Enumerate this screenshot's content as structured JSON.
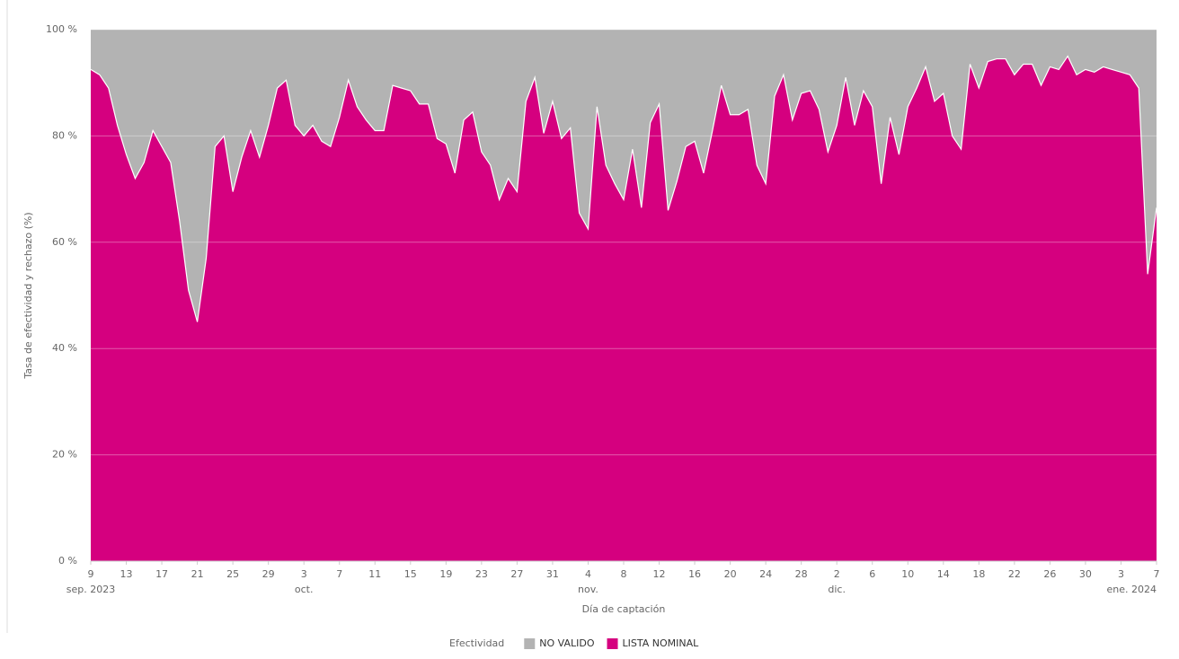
{
  "chart_data": {
    "type": "stacked_area",
    "y_label": "Tasa de efectividad y rechazo (%)",
    "x_label": "Día de captación",
    "legend_title": "Efectividad",
    "x": [
      "2023-09-09",
      "2023-09-10",
      "2023-09-11",
      "2023-09-12",
      "2023-09-13",
      "2023-09-14",
      "2023-09-15",
      "2023-09-16",
      "2023-09-17",
      "2023-09-18",
      "2023-09-19",
      "2023-09-20",
      "2023-09-21",
      "2023-09-22",
      "2023-09-23",
      "2023-09-24",
      "2023-09-25",
      "2023-09-26",
      "2023-09-27",
      "2023-09-28",
      "2023-09-29",
      "2023-09-30",
      "2023-10-01",
      "2023-10-02",
      "2023-10-03",
      "2023-10-04",
      "2023-10-05",
      "2023-10-06",
      "2023-10-07",
      "2023-10-08",
      "2023-10-09",
      "2023-10-10",
      "2023-10-11",
      "2023-10-12",
      "2023-10-13",
      "2023-10-14",
      "2023-10-15",
      "2023-10-16",
      "2023-10-17",
      "2023-10-18",
      "2023-10-19",
      "2023-10-20",
      "2023-10-21",
      "2023-10-22",
      "2023-10-23",
      "2023-10-24",
      "2023-10-25",
      "2023-10-26",
      "2023-10-27",
      "2023-10-28",
      "2023-10-29",
      "2023-10-30",
      "2023-10-31",
      "2023-11-01",
      "2023-11-02",
      "2023-11-03",
      "2023-11-04",
      "2023-11-05",
      "2023-11-06",
      "2023-11-07",
      "2023-11-08",
      "2023-11-09",
      "2023-11-10",
      "2023-11-11",
      "2023-11-12",
      "2023-11-13",
      "2023-11-14",
      "2023-11-15",
      "2023-11-16",
      "2023-11-17",
      "2023-11-18",
      "2023-11-19",
      "2023-11-20",
      "2023-11-21",
      "2023-11-22",
      "2023-11-23",
      "2023-11-24",
      "2023-11-25",
      "2023-11-26",
      "2023-11-27",
      "2023-11-28",
      "2023-11-29",
      "2023-11-30",
      "2023-12-01",
      "2023-12-02",
      "2023-12-03",
      "2023-12-04",
      "2023-12-05",
      "2023-12-06",
      "2023-12-07",
      "2023-12-08",
      "2023-12-09",
      "2023-12-10",
      "2023-12-11",
      "2023-12-12",
      "2023-12-13",
      "2023-12-14",
      "2023-12-15",
      "2023-12-16",
      "2023-12-17",
      "2023-12-18",
      "2023-12-19",
      "2023-12-20",
      "2023-12-21",
      "2023-12-22",
      "2023-12-23",
      "2023-12-24",
      "2023-12-25",
      "2023-12-26",
      "2023-12-27",
      "2023-12-28",
      "2023-12-29",
      "2023-12-30",
      "2023-12-31",
      "2024-01-01",
      "2024-01-02",
      "2024-01-03",
      "2024-01-04",
      "2024-01-05",
      "2024-01-06",
      "2024-01-07"
    ],
    "series": [
      {
        "name": "LISTA NOMINAL",
        "color": "#d5007f",
        "values": [
          92.5,
          91.5,
          89,
          82,
          76.5,
          72,
          75,
          81,
          78,
          75,
          64,
          51,
          45,
          57,
          78,
          80,
          69.5,
          76,
          81,
          76,
          82,
          89,
          90.5,
          82,
          80,
          82,
          79,
          78,
          83.5,
          90.5,
          85.5,
          83,
          81,
          81,
          89.5,
          89,
          88.5,
          86,
          86,
          79.5,
          78.5,
          73,
          83,
          84.5,
          77,
          74.5,
          68,
          72,
          69.5,
          86.5,
          91,
          80.5,
          86.5,
          79.5,
          81.5,
          65.5,
          62.5,
          85.5,
          74.5,
          71,
          68,
          77.5,
          66.5,
          82.5,
          86,
          66,
          71.5,
          78,
          79,
          73,
          81,
          89.5,
          84,
          84,
          85,
          74.5,
          71,
          87.5,
          91.5,
          83,
          88,
          88.5,
          85,
          77,
          82,
          91,
          82,
          88.5,
          85.5,
          71,
          83.5,
          76.5,
          85.5,
          89,
          93,
          86.5,
          88,
          80,
          77.5,
          93.5,
          89,
          94,
          94.5,
          94.5,
          91.5,
          93.5,
          93.5,
          89.5,
          93,
          92.5,
          95,
          91.5,
          92.5,
          92,
          93,
          92.5,
          92,
          91.5,
          89,
          54,
          66.5
        ]
      },
      {
        "name": "NO VALIDO",
        "color": "#b3b3b3",
        "values": [
          7.5,
          8.5,
          11,
          18,
          23.5,
          28,
          25,
          19,
          22,
          25,
          36,
          49,
          55,
          43,
          22,
          20,
          30.5,
          24,
          19,
          24,
          18,
          11,
          9.5,
          18,
          20,
          18,
          21,
          22,
          16.5,
          9.5,
          14.5,
          17,
          19,
          19,
          10.5,
          11,
          11.5,
          14,
          14,
          20.5,
          21.5,
          27,
          17,
          15.5,
          23,
          25.5,
          32,
          28,
          30.5,
          13.5,
          9,
          19.5,
          13.5,
          20.5,
          18.5,
          34.5,
          37.5,
          14.5,
          25.5,
          29,
          32,
          22.5,
          33.5,
          17.5,
          14,
          34,
          28.5,
          22,
          21,
          27,
          19,
          10.5,
          16,
          16,
          15,
          25.5,
          29,
          12.5,
          8.5,
          17,
          12,
          11.5,
          15,
          23,
          18,
          9,
          18,
          11.5,
          14.5,
          29,
          16.5,
          23.5,
          14.5,
          11,
          7,
          13.5,
          12,
          20,
          22.5,
          6.5,
          11,
          6,
          5.5,
          5.5,
          8.5,
          6.5,
          6.5,
          10.5,
          7,
          7.5,
          5,
          8.5,
          7.5,
          8,
          7,
          7.5,
          8,
          8.5,
          11,
          46,
          33.5
        ]
      }
    ],
    "legend_order": [
      "NO VALIDO",
      "LISTA NOMINAL"
    ],
    "xlim": [
      "2023-09-09",
      "2024-01-07"
    ],
    "xticks": [
      {
        "value": "2023-09-09",
        "label": "9"
      },
      {
        "value": "2023-09-13",
        "label": "13"
      },
      {
        "value": "2023-09-17",
        "label": "17"
      },
      {
        "value": "2023-09-21",
        "label": "21"
      },
      {
        "value": "2023-09-25",
        "label": "25"
      },
      {
        "value": "2023-09-29",
        "label": "29"
      },
      {
        "value": "2023-10-03",
        "label": "3"
      },
      {
        "value": "2023-10-07",
        "label": "7"
      },
      {
        "value": "2023-10-11",
        "label": "11"
      },
      {
        "value": "2023-10-15",
        "label": "15"
      },
      {
        "value": "2023-10-19",
        "label": "19"
      },
      {
        "value": "2023-10-23",
        "label": "23"
      },
      {
        "value": "2023-10-27",
        "label": "27"
      },
      {
        "value": "2023-10-31",
        "label": "31"
      },
      {
        "value": "2023-11-04",
        "label": "4"
      },
      {
        "value": "2023-11-08",
        "label": "8"
      },
      {
        "value": "2023-11-12",
        "label": "12"
      },
      {
        "value": "2023-11-16",
        "label": "16"
      },
      {
        "value": "2023-11-20",
        "label": "20"
      },
      {
        "value": "2023-11-24",
        "label": "24"
      },
      {
        "value": "2023-11-28",
        "label": "28"
      },
      {
        "value": "2023-12-02",
        "label": "2"
      },
      {
        "value": "2023-12-06",
        "label": "6"
      },
      {
        "value": "2023-12-10",
        "label": "10"
      },
      {
        "value": "2023-12-14",
        "label": "14"
      },
      {
        "value": "2023-12-18",
        "label": "18"
      },
      {
        "value": "2023-12-22",
        "label": "22"
      },
      {
        "value": "2023-12-26",
        "label": "26"
      },
      {
        "value": "2023-12-30",
        "label": "30"
      },
      {
        "value": "2024-01-03",
        "label": "3"
      },
      {
        "value": "2024-01-07",
        "label": "7"
      }
    ],
    "xtick_sublabels": [
      {
        "value": "2023-09-09",
        "label": "sep. 2023"
      },
      {
        "value": "2023-10-03",
        "label": "oct."
      },
      {
        "value": "2023-11-04",
        "label": "nov."
      },
      {
        "value": "2023-12-02",
        "label": "dic."
      },
      {
        "value": "2024-01-03",
        "label": "ene. 2024"
      }
    ],
    "ylim": [
      0,
      100
    ],
    "yticks": [
      {
        "value": 0,
        "label": "0 %"
      },
      {
        "value": 20,
        "label": "20 %"
      },
      {
        "value": 40,
        "label": "40 %"
      },
      {
        "value": 60,
        "label": "60 %"
      },
      {
        "value": 80,
        "label": "80 %"
      },
      {
        "value": 100,
        "label": "100 %"
      }
    ],
    "grid": true,
    "legend": "bottom"
  }
}
